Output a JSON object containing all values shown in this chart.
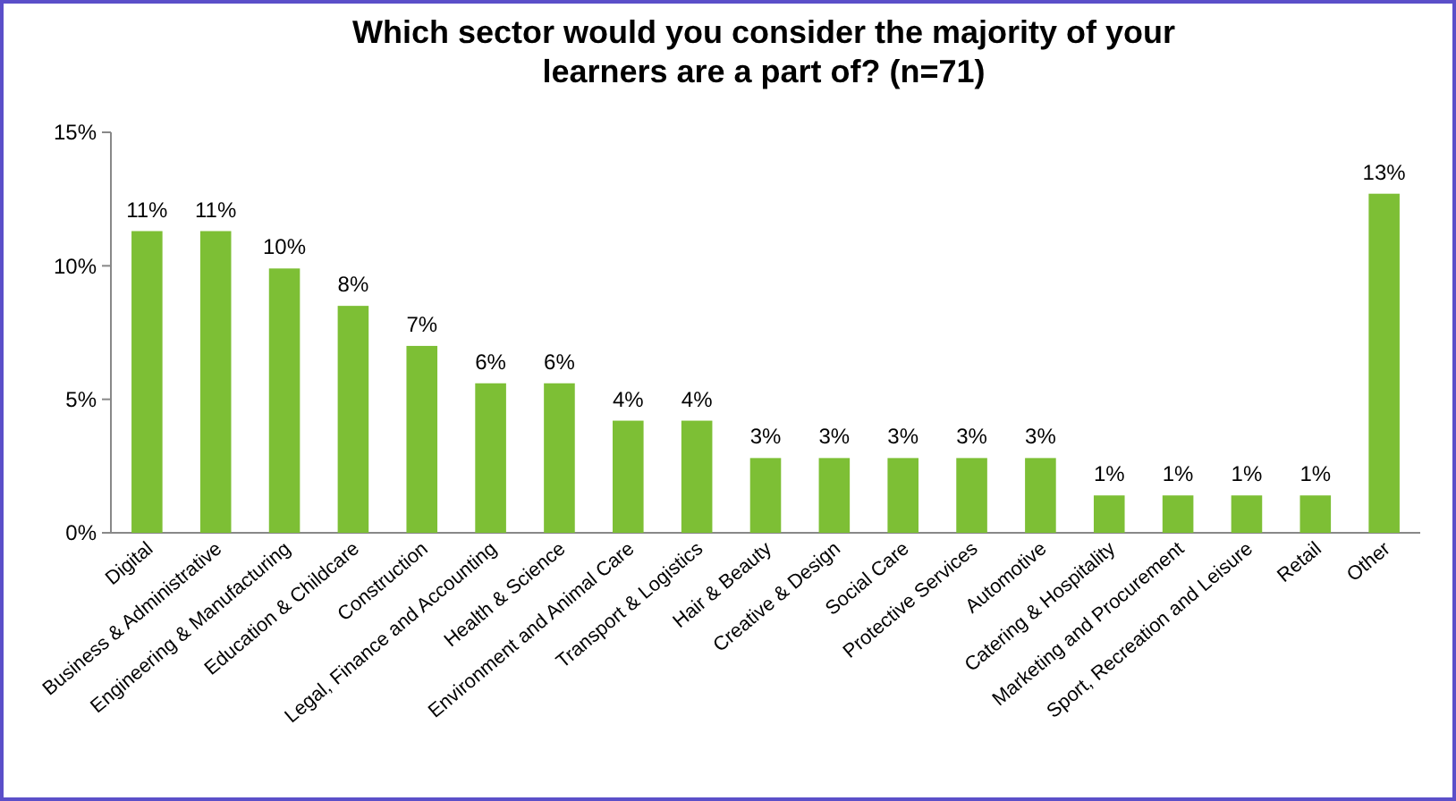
{
  "chart_data": {
    "type": "bar",
    "title": "Which sector would you consider the majority of your learners are a part of? (n=71)",
    "categories": [
      "Digital",
      "Business & Administrative",
      "Engineering & Manufacturing",
      "Education & Childcare",
      "Construction",
      "Legal, Finance and Accounting",
      "Health & Science",
      "Environment and Animal Care",
      "Transport & Logistics",
      "Hair & Beauty",
      "Creative & Design",
      "Social Care",
      "Protective Services",
      "Automotive",
      "Catering & Hospitality",
      "Marketing and Procurement",
      "Sport, Recreation and Leisure",
      "Retail",
      "Other"
    ],
    "values": [
      11.3,
      11.3,
      9.9,
      8.5,
      7.0,
      5.6,
      5.6,
      4.2,
      4.2,
      2.8,
      2.8,
      2.8,
      2.8,
      2.8,
      1.4,
      1.4,
      1.4,
      1.4,
      12.7
    ],
    "value_labels": [
      "11%",
      "11%",
      "10%",
      "8%",
      "7%",
      "6%",
      "6%",
      "4%",
      "4%",
      "3%",
      "3%",
      "3%",
      "3%",
      "3%",
      "1%",
      "1%",
      "1%",
      "1%",
      "13%"
    ],
    "color": "#7dbf35",
    "ylim": [
      0,
      15
    ],
    "yticks": [
      {
        "value": 0,
        "label": "0%"
      },
      {
        "value": 5,
        "label": "5%"
      },
      {
        "value": 10,
        "label": "10%"
      },
      {
        "value": 15,
        "label": "15%"
      }
    ]
  }
}
